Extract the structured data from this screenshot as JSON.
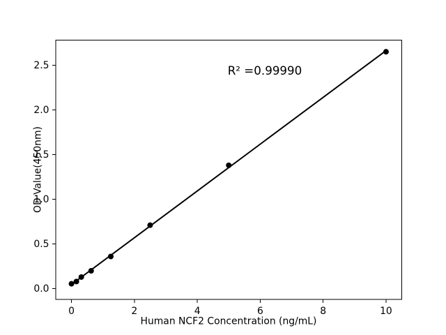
{
  "chart_data": {
    "type": "scatter",
    "title": "",
    "xlabel": "Human NCF2 Concentration (ng/mL)",
    "ylabel": "OD Value(450nm)",
    "annotation": {
      "text": "R² =0.99990",
      "r_squared": 0.9999
    },
    "points": {
      "x": [
        0,
        0.156,
        0.3125,
        0.625,
        1.25,
        2.5,
        5,
        10
      ],
      "y": [
        0.055,
        0.08,
        0.13,
        0.2,
        0.36,
        0.71,
        1.38,
        2.65
      ]
    },
    "fit_line": true,
    "xlim": [
      -0.5,
      10.5
    ],
    "ylim": [
      -0.12,
      2.78
    ],
    "x_ticks": {
      "values": [
        0,
        2,
        4,
        6,
        8,
        10
      ],
      "labels": [
        "0",
        "2",
        "4",
        "6",
        "8",
        "10"
      ]
    },
    "y_ticks": {
      "values": [
        0,
        0.5,
        1,
        1.5,
        2,
        2.5
      ],
      "labels": [
        "0.0",
        "0.5",
        "1.0",
        "1.5",
        "2.0",
        "2.5"
      ]
    },
    "grid": false,
    "legend": "none",
    "colors": {
      "marker": "#000000",
      "line": "#000000",
      "axis": "#000000",
      "text": "#000000",
      "background": "#ffffff"
    }
  }
}
